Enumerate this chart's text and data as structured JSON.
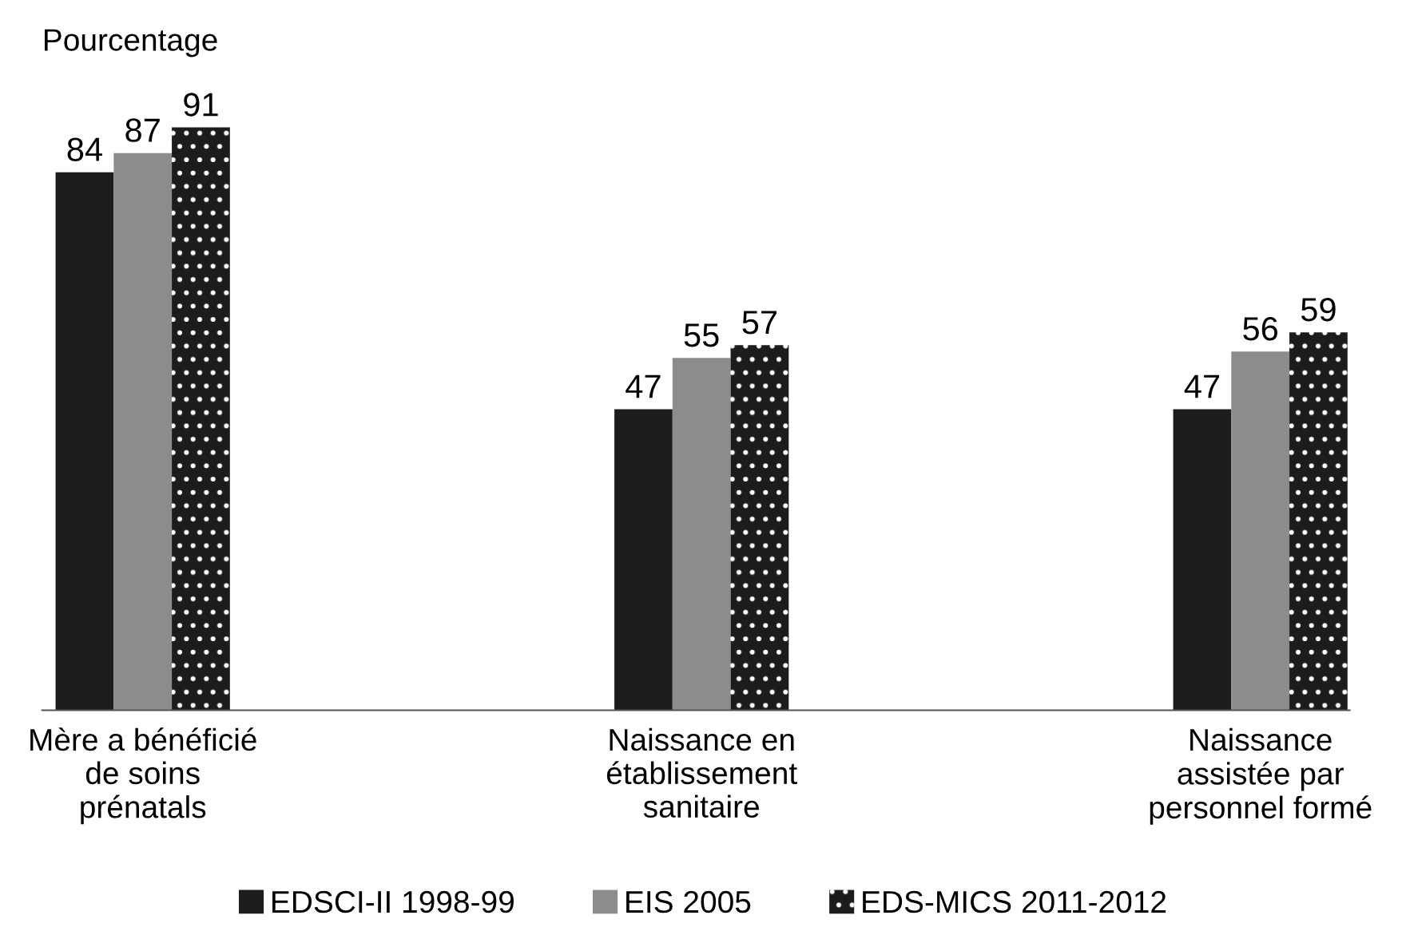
{
  "chart_data": {
    "type": "bar",
    "ylabel": "Pourcentage",
    "categories": [
      "Mère a bénéficié\nde soins\nprénatals",
      "Naissance en\nétablissement\nsanitaire",
      "Naissance\nassistée par\npersonnel formé"
    ],
    "series": [
      {
        "name": "EDSCI-II 1998-99",
        "color": "#1c1c1c",
        "values": [
          84,
          47,
          47
        ]
      },
      {
        "name": "EIS 2005",
        "color": "#8c8c8c",
        "values": [
          87,
          55,
          56
        ]
      },
      {
        "name": "EDS-MICS 2011-2012",
        "color": "#1c1c1c",
        "values": [
          91,
          57,
          59
        ]
      }
    ],
    "data_labels": true,
    "legend": "bottom",
    "grid": false
  }
}
